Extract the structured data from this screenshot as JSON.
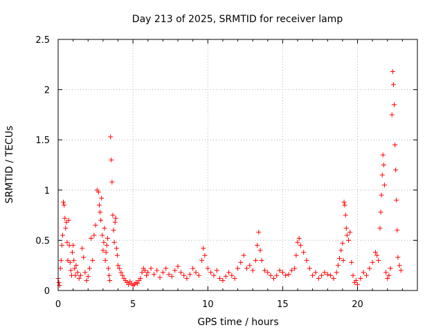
{
  "chart_data": {
    "type": "scatter",
    "title": "Day 213 of 2025, SRMTID for receiver lamp",
    "xlabel": "GPS time / hours",
    "ylabel": "SRMTID / TECUs",
    "xlim": [
      0,
      24
    ],
    "ylim": [
      0,
      2.5
    ],
    "xticks": [
      0,
      5,
      10,
      15,
      20
    ],
    "xtick_labels": [
      "0",
      "5",
      "10",
      "15",
      "20"
    ],
    "yticks": [
      0,
      0.5,
      1,
      1.5,
      2,
      2.5
    ],
    "ytick_labels": [
      "0",
      "0.5",
      "1",
      "1.5",
      "2",
      "2.5"
    ],
    "grid": true,
    "marker": "+",
    "series": [
      {
        "name": "SRMTID",
        "color": "#ff0000",
        "x": [
          0.0,
          0.05,
          0.1,
          0.15,
          0.2,
          0.25,
          0.3,
          0.35,
          0.4,
          0.45,
          0.5,
          0.55,
          0.6,
          0.65,
          0.7,
          0.75,
          0.8,
          0.85,
          0.9,
          0.95,
          1.0,
          1.05,
          1.1,
          1.15,
          1.2,
          1.3,
          1.4,
          1.5,
          1.6,
          1.7,
          1.8,
          1.9,
          2.0,
          2.1,
          2.2,
          2.3,
          2.4,
          2.5,
          2.6,
          2.7,
          2.75,
          2.8,
          2.85,
          2.9,
          2.95,
          3.0,
          3.05,
          3.1,
          3.15,
          3.2,
          3.25,
          3.3,
          3.35,
          3.4,
          3.45,
          3.5,
          3.55,
          3.6,
          3.65,
          3.7,
          3.75,
          3.8,
          3.85,
          3.9,
          3.95,
          4.0,
          4.1,
          4.2,
          4.3,
          4.4,
          4.5,
          4.6,
          4.7,
          4.8,
          4.9,
          5.0,
          5.1,
          5.2,
          5.3,
          5.4,
          5.5,
          5.6,
          5.7,
          5.8,
          5.9,
          6.0,
          6.2,
          6.4,
          6.6,
          6.8,
          7.0,
          7.2,
          7.4,
          7.6,
          7.8,
          8.0,
          8.2,
          8.4,
          8.6,
          8.8,
          9.0,
          9.2,
          9.4,
          9.6,
          9.7,
          9.8,
          10.0,
          10.2,
          10.4,
          10.6,
          10.8,
          11.0,
          11.2,
          11.4,
          11.6,
          11.8,
          12.0,
          12.2,
          12.4,
          12.6,
          12.8,
          13.0,
          13.2,
          13.3,
          13.4,
          13.5,
          13.6,
          13.8,
          14.0,
          14.2,
          14.4,
          14.6,
          14.8,
          15.0,
          15.2,
          15.4,
          15.6,
          15.8,
          15.9,
          16.0,
          16.1,
          16.2,
          16.4,
          16.6,
          16.8,
          17.0,
          17.2,
          17.4,
          17.6,
          17.8,
          18.0,
          18.2,
          18.4,
          18.6,
          18.7,
          18.8,
          18.9,
          19.0,
          19.05,
          19.1,
          19.15,
          19.2,
          19.25,
          19.3,
          19.4,
          19.5,
          19.6,
          19.7,
          19.8,
          19.9,
          20.0,
          20.2,
          20.4,
          20.6,
          20.8,
          21.0,
          21.2,
          21.3,
          21.4,
          21.5,
          21.55,
          21.6,
          21.65,
          21.7,
          21.75,
          21.8,
          21.9,
          22.0,
          22.1,
          22.2,
          22.3,
          22.35,
          22.4,
          22.45,
          22.5,
          22.55,
          22.6,
          22.65,
          22.7,
          22.8,
          22.9
        ],
        "y": [
          0.12,
          0.08,
          0.05,
          0.22,
          0.3,
          0.45,
          0.55,
          0.88,
          0.85,
          0.72,
          0.62,
          0.68,
          0.48,
          0.3,
          0.7,
          0.45,
          0.28,
          0.2,
          0.15,
          0.38,
          0.45,
          0.3,
          0.22,
          0.15,
          0.25,
          0.18,
          0.12,
          0.15,
          0.42,
          0.33,
          0.18,
          0.1,
          0.14,
          0.22,
          0.52,
          0.3,
          0.55,
          0.65,
          1.0,
          0.98,
          0.85,
          0.78,
          0.7,
          0.92,
          0.55,
          0.4,
          0.48,
          0.62,
          0.3,
          0.38,
          0.45,
          0.52,
          0.22,
          0.15,
          0.1,
          1.53,
          1.3,
          1.08,
          0.75,
          0.6,
          0.48,
          0.68,
          0.72,
          0.42,
          0.35,
          0.25,
          0.22,
          0.18,
          0.15,
          0.12,
          0.1,
          0.08,
          0.06,
          0.09,
          0.07,
          0.05,
          0.06,
          0.08,
          0.07,
          0.1,
          0.12,
          0.18,
          0.22,
          0.2,
          0.15,
          0.18,
          0.22,
          0.16,
          0.2,
          0.13,
          0.18,
          0.22,
          0.16,
          0.14,
          0.2,
          0.24,
          0.18,
          0.15,
          0.12,
          0.16,
          0.22,
          0.18,
          0.15,
          0.3,
          0.42,
          0.35,
          0.22,
          0.18,
          0.15,
          0.2,
          0.12,
          0.1,
          0.14,
          0.18,
          0.15,
          0.12,
          0.22,
          0.28,
          0.35,
          0.22,
          0.25,
          0.2,
          0.3,
          0.45,
          0.58,
          0.4,
          0.3,
          0.2,
          0.18,
          0.15,
          0.12,
          0.15,
          0.2,
          0.18,
          0.15,
          0.16,
          0.2,
          0.22,
          0.35,
          0.48,
          0.52,
          0.45,
          0.38,
          0.3,
          0.22,
          0.15,
          0.18,
          0.12,
          0.15,
          0.18,
          0.16,
          0.15,
          0.12,
          0.18,
          0.25,
          0.32,
          0.4,
          0.47,
          0.3,
          0.88,
          0.85,
          0.75,
          0.62,
          0.55,
          0.5,
          0.58,
          0.28,
          0.15,
          0.08,
          0.1,
          0.06,
          0.12,
          0.18,
          0.15,
          0.22,
          0.28,
          0.38,
          0.35,
          0.3,
          0.62,
          0.78,
          0.95,
          1.15,
          1.35,
          1.25,
          1.05,
          0.18,
          0.12,
          0.15,
          0.22,
          1.75,
          2.18,
          2.05,
          1.85,
          1.45,
          1.2,
          0.9,
          0.6,
          0.33,
          0.25,
          0.2
        ]
      }
    ]
  }
}
